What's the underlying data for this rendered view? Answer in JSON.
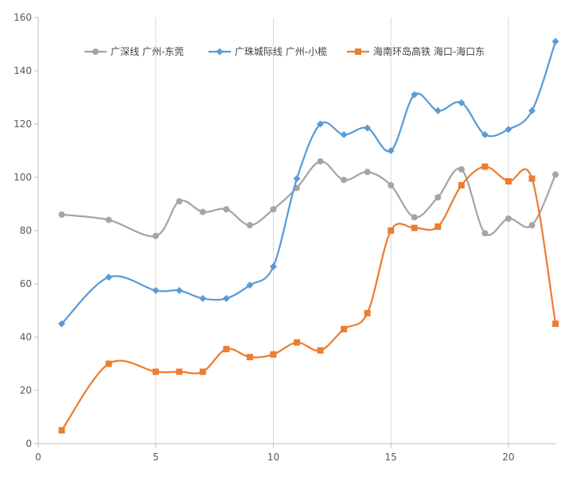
{
  "chart_data": {
    "type": "scatter",
    "title": "",
    "xlabel": "",
    "ylabel": "",
    "xlim": [
      0,
      22
    ],
    "ylim": [
      0,
      160
    ],
    "x_ticks": [
      0,
      5,
      10,
      15,
      20
    ],
    "y_ticks": [
      0,
      20,
      40,
      60,
      80,
      100,
      120,
      140,
      160
    ],
    "x_tick_labels": [
      "0",
      "5",
      "10",
      "15",
      "20"
    ],
    "y_tick_labels": [
      "0",
      "20",
      "40",
      "60",
      "80",
      "100",
      "120",
      "140",
      "160"
    ],
    "grid": "vertical",
    "legend_position": "top",
    "smooth_lines": true,
    "series": [
      {
        "name": "广深线 广州-东莞",
        "color": "#A5A5A5",
        "marker": "circle",
        "x": [
          1,
          3,
          5,
          6,
          7,
          8,
          9,
          10,
          11,
          12,
          13,
          14,
          15,
          16,
          17,
          18,
          19,
          20,
          21,
          22
        ],
        "y": [
          86,
          84,
          78,
          91,
          87,
          88,
          82,
          88,
          96,
          106,
          99,
          102,
          97,
          85,
          92.5,
          103,
          79,
          84.5,
          82,
          101
        ]
      },
      {
        "name": "广珠城际线 广州-小榄",
        "color": "#5B9BD5",
        "marker": "diamond",
        "x": [
          1,
          3,
          5,
          6,
          7,
          8,
          9,
          10,
          11,
          12,
          13,
          14,
          15,
          16,
          17,
          18,
          19,
          20,
          21,
          22
        ],
        "y": [
          45,
          62.5,
          57.5,
          57.5,
          54.5,
          54.5,
          59.5,
          66.5,
          99.5,
          120,
          116,
          118.5,
          110,
          131,
          125,
          128,
          116,
          118,
          125,
          151
        ]
      },
      {
        "name": "海南环岛高铁 海口-海口东",
        "color": "#ED7D31",
        "marker": "square",
        "x": [
          1,
          3,
          5,
          6,
          7,
          8,
          9,
          10,
          11,
          12,
          13,
          14,
          15,
          16,
          17,
          18,
          19,
          20,
          21,
          22
        ],
        "y": [
          5,
          30,
          27,
          27,
          27,
          35.5,
          32.5,
          33.5,
          38,
          35,
          43,
          49,
          80,
          81,
          81.5,
          97,
          104,
          98.5,
          99.5,
          45
        ]
      }
    ]
  }
}
